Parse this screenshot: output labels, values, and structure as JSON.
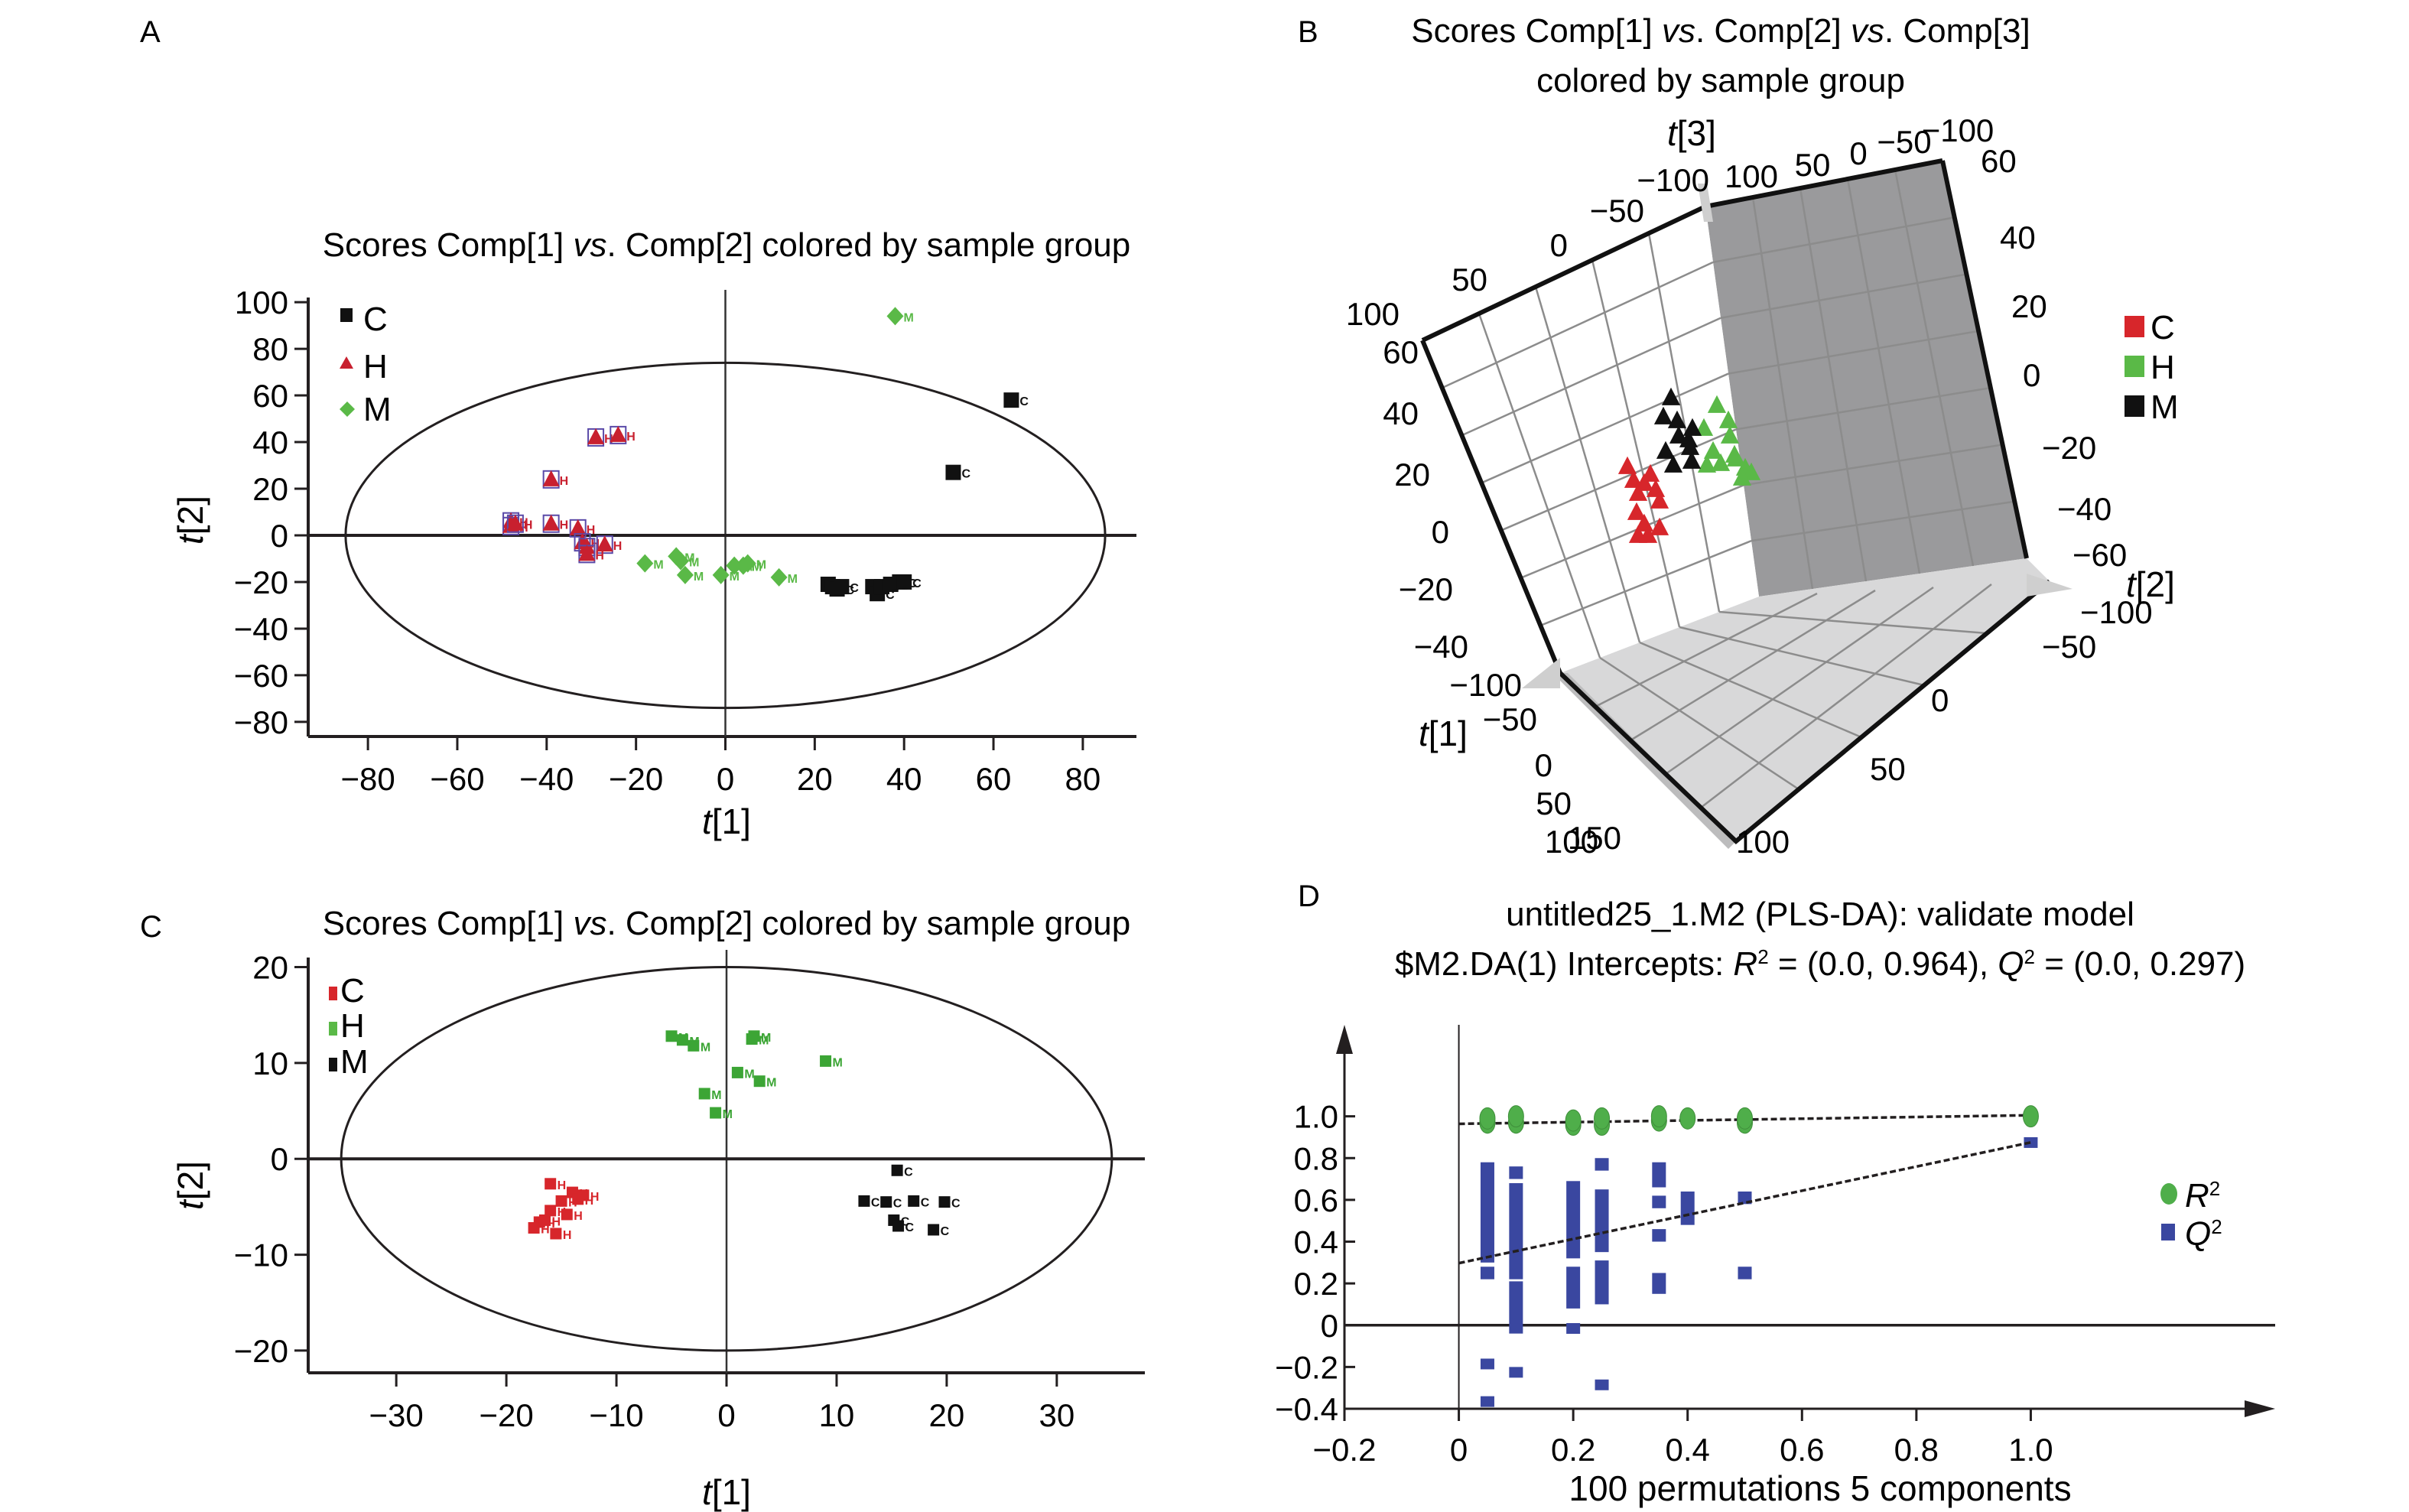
{
  "figure": {
    "panels": [
      "A",
      "B",
      "C",
      "D"
    ]
  },
  "chart_data": [
    {
      "id": "A",
      "type": "scatter",
      "panel_label": "A",
      "title": "Scores Comp[1] vs. Comp[2] colored by sample group",
      "title_parts": {
        "pre": "Scores Comp[1] ",
        "italic": "vs",
        "post": ". Comp[2] colored by sample group"
      },
      "xlabel": "t[1]",
      "xlabel_parts": {
        "italic": "t",
        "rest": "[1]"
      },
      "ylabel": "t[2]",
      "ylabel_parts": {
        "italic": "t",
        "rest": "[2]"
      },
      "xlim": [
        -92,
        92
      ],
      "ylim": [
        -82,
        102
      ],
      "xticks": [
        -80,
        -60,
        -40,
        -20,
        0,
        20,
        40,
        60,
        80
      ],
      "yticks": [
        100,
        80,
        60,
        40,
        20,
        0,
        -20,
        -40,
        -60,
        -80
      ],
      "grid": false,
      "ellipse": {
        "rx": 85,
        "ry": 74
      },
      "legend_position": "top-left",
      "legend": [
        {
          "name": "C",
          "marker": "square",
          "color": "#111111"
        },
        {
          "name": "H",
          "marker": "triangle",
          "color": "#c8202f"
        },
        {
          "name": "M",
          "marker": "diamond",
          "color": "#5ab947"
        }
      ],
      "series": [
        {
          "name": "C",
          "color": "#111111",
          "marker": "square",
          "points": [
            [
              64,
              58
            ],
            [
              51,
              27
            ],
            [
              23,
              -21
            ],
            [
              24,
              -22
            ],
            [
              25,
              -23
            ],
            [
              26,
              -22
            ],
            [
              33,
              -22
            ],
            [
              34,
              -25
            ],
            [
              35,
              -22
            ],
            [
              37,
              -21
            ],
            [
              39,
              -20
            ],
            [
              40,
              -20
            ]
          ]
        },
        {
          "name": "H",
          "color": "#c8202f",
          "marker": "triangle",
          "points": [
            [
              -29,
              42
            ],
            [
              -24,
              43
            ],
            [
              -39,
              24
            ],
            [
              -48,
              6
            ],
            [
              -48,
              4
            ],
            [
              -47,
              5
            ],
            [
              -39,
              5
            ],
            [
              -33,
              3
            ],
            [
              -32,
              -3
            ],
            [
              -31,
              -5
            ],
            [
              -27,
              -4
            ],
            [
              -31,
              -8
            ]
          ]
        },
        {
          "name": "M",
          "color": "#5ab947",
          "marker": "diamond",
          "points": [
            [
              38,
              94
            ],
            [
              -18,
              -12
            ],
            [
              -11,
              -9
            ],
            [
              -10,
              -11
            ],
            [
              -9,
              -17
            ],
            [
              -1,
              -17
            ],
            [
              2,
              -13
            ],
            [
              4,
              -13
            ],
            [
              5,
              -12
            ],
            [
              12,
              -18
            ]
          ]
        }
      ]
    },
    {
      "id": "B",
      "type": "scatter",
      "subtype": "3d",
      "panel_label": "B",
      "title_line1": "Scores Comp[1] vs. Comp[2] vs. Comp[3]",
      "title_line1_parts": {
        "a": "Scores Comp[1] ",
        "i1": "vs",
        "b": ". Comp[2] ",
        "i2": "vs",
        "c": ". Comp[3]"
      },
      "title_line2": "colored by sample group",
      "axes": {
        "t1": {
          "label": "t[1]",
          "ticks": [
            "-100",
            "-50",
            "0",
            "50",
            "100",
            "150"
          ]
        },
        "t2": {
          "label": "t[2]",
          "ticks": [
            "-100",
            "-50",
            "0",
            "50",
            "100"
          ]
        },
        "t3": {
          "label": "t[3]",
          "ticks_left": [
            "60",
            "40",
            "20",
            "0",
            "-20",
            "-40"
          ],
          "ticks_right": [
            "60",
            "40",
            "20",
            "0",
            "-20",
            "-40",
            "-60"
          ]
        },
        "top_ticks_left": [
          "100",
          "50",
          "0",
          "-50",
          "-100"
        ],
        "top_ticks_right": [
          "100",
          "50",
          "0",
          "-50",
          "-100"
        ]
      },
      "legend_position": "right",
      "legend": [
        {
          "name": "C",
          "color": "#d7262b"
        },
        {
          "name": "H",
          "color": "#5ab947"
        },
        {
          "name": "M",
          "color": "#111111"
        }
      ],
      "series": [
        {
          "name": "C",
          "color": "#d7262b",
          "marker": "triangle",
          "count": 12
        },
        {
          "name": "H",
          "color": "#5ab947",
          "marker": "triangle",
          "count": 12
        },
        {
          "name": "M",
          "color": "#111111",
          "marker": "triangle",
          "count": 10
        }
      ]
    },
    {
      "id": "C",
      "type": "scatter",
      "panel_label": "C",
      "title": "Scores Comp[1] vs. Comp[2] colored by sample group",
      "title_parts": {
        "pre": "Scores Comp[1] ",
        "italic": "vs",
        "post": ". Comp[2] colored by sample group"
      },
      "xlabel": "t[1]",
      "xlabel_parts": {
        "italic": "t",
        "rest": "[1]"
      },
      "ylabel": "t[2]",
      "ylabel_parts": {
        "italic": "t",
        "rest": "[2]"
      },
      "xlim": [
        -38,
        38
      ],
      "ylim": [
        -22,
        21
      ],
      "xticks": [
        -30,
        -20,
        -10,
        0,
        10,
        20,
        30
      ],
      "yticks": [
        20,
        10,
        0,
        -10,
        -20
      ],
      "grid": false,
      "ellipse": {
        "rx": 35,
        "ry": 20
      },
      "legend_position": "top-left",
      "legend": [
        {
          "name": "C",
          "marker": "square",
          "color": "#d7262b"
        },
        {
          "name": "H",
          "marker": "square",
          "color": "#5ab947"
        },
        {
          "name": "M",
          "marker": "square",
          "color": "#111111"
        }
      ],
      "series": [
        {
          "name": "H",
          "color": "#d7262b",
          "marker": "square",
          "points": [
            [
              -16,
              -2.6
            ],
            [
              -14,
              -3.5
            ],
            [
              -13.5,
              -4.2
            ],
            [
              -15,
              -4.4
            ],
            [
              -16,
              -5.4
            ],
            [
              -14.5,
              -5.8
            ],
            [
              -17,
              -6.6
            ],
            [
              -17.5,
              -7.2
            ],
            [
              -16.5,
              -6.4
            ],
            [
              -15.5,
              -7.8
            ],
            [
              -13,
              -3.8
            ]
          ]
        },
        {
          "name": "M",
          "color": "#3ca535",
          "marker": "square",
          "points": [
            [
              -5,
              12.8
            ],
            [
              -4,
              12.4
            ],
            [
              -3,
              11.8
            ],
            [
              2.5,
              12.8
            ],
            [
              2.3,
              12.5
            ],
            [
              9,
              10.2
            ],
            [
              1,
              9
            ],
            [
              3,
              8.1
            ],
            [
              -2,
              6.8
            ],
            [
              -1,
              4.8
            ]
          ]
        },
        {
          "name": "C",
          "color": "#111111",
          "marker": "square",
          "points": [
            [
              15.5,
              -1.2
            ],
            [
              12.5,
              -4.4
            ],
            [
              14.5,
              -4.5
            ],
            [
              17,
              -4.4
            ],
            [
              19.8,
              -4.5
            ],
            [
              15.2,
              -6.4
            ],
            [
              15.6,
              -7.0
            ],
            [
              18.8,
              -7.4
            ]
          ]
        }
      ]
    },
    {
      "id": "D",
      "type": "scatter",
      "panel_label": "D",
      "title_line1": "untitled25_1.M2 (PLS-DA): validate model",
      "title_line2": "$M2.DA(1) Intercepts: R2 = (0.0, 0.964), Q2 = (0.0, 0.297)",
      "title_line2_parts": {
        "a": "$M2.DA(1) Intercepts: ",
        "r": "R",
        "b": " = (0.0, 0.964), ",
        "q": "Q",
        "c": " = (0.0, 0.297)",
        "sup": "2"
      },
      "xlabel": "100 permutations 5 components",
      "xlim": [
        -0.2,
        1.2
      ],
      "ylim": [
        -0.4,
        1.2
      ],
      "xticks": [
        "-0.2",
        "0",
        "0.2",
        "0.4",
        "0.6",
        "0.8",
        "1.0"
      ],
      "xtick_values": [
        -0.2,
        0,
        0.2,
        0.4,
        0.6,
        0.8,
        1.0
      ],
      "yticks": [
        "1.0",
        "0.8",
        "0.6",
        "0.4",
        "0.2",
        "0",
        "-0.2",
        "-0.4"
      ],
      "ytick_values": [
        1.0,
        0.8,
        0.6,
        0.4,
        0.2,
        0,
        -0.2,
        -0.4
      ],
      "legend_position": "right",
      "legend": [
        {
          "name": "R2",
          "base": "R",
          "sup": "2",
          "marker": "circle",
          "color": "#4fae4a"
        },
        {
          "name": "Q2",
          "base": "Q",
          "sup": "2",
          "marker": "square",
          "color": "#3a47a0"
        }
      ],
      "series": [
        {
          "name": "R2",
          "color": "#4fae4a",
          "marker": "circle",
          "points": [
            [
              0.05,
              0.97
            ],
            [
              0.05,
              0.99
            ],
            [
              0.1,
              0.97
            ],
            [
              0.1,
              1.0
            ],
            [
              0.2,
              0.96
            ],
            [
              0.2,
              0.98
            ],
            [
              0.25,
              0.96
            ],
            [
              0.25,
              0.99
            ],
            [
              0.35,
              0.98
            ],
            [
              0.35,
              1.0
            ],
            [
              0.4,
              0.99
            ],
            [
              0.5,
              0.97
            ],
            [
              0.5,
              0.99
            ],
            [
              1.0,
              1.0
            ]
          ]
        },
        {
          "name": "Q2",
          "color": "#3a47a0",
          "marker": "square",
          "bars": [
            {
              "x": 0.05,
              "from": 0.3,
              "to": 0.78
            },
            {
              "x": 0.05,
              "from": 0.22,
              "to": 0.28
            },
            {
              "x": 0.05,
              "from": -0.2,
              "to": -0.16
            },
            {
              "x": 0.05,
              "from": -0.38,
              "to": -0.34
            },
            {
              "x": 0.1,
              "from": 0.7,
              "to": 0.76
            },
            {
              "x": 0.1,
              "from": 0.22,
              "to": 0.68
            },
            {
              "x": 0.1,
              "from": -0.04,
              "to": 0.21
            },
            {
              "x": 0.1,
              "from": -0.24,
              "to": -0.2
            },
            {
              "x": 0.2,
              "from": 0.32,
              "to": 0.69
            },
            {
              "x": 0.2,
              "from": 0.08,
              "to": 0.28
            },
            {
              "x": 0.2,
              "from": -0.04,
              "to": 0.01
            },
            {
              "x": 0.25,
              "from": 0.74,
              "to": 0.8
            },
            {
              "x": 0.25,
              "from": 0.35,
              "to": 0.65
            },
            {
              "x": 0.25,
              "from": 0.1,
              "to": 0.31
            },
            {
              "x": 0.25,
              "from": -0.3,
              "to": -0.26
            },
            {
              "x": 0.35,
              "from": 0.66,
              "to": 0.78
            },
            {
              "x": 0.35,
              "from": 0.56,
              "to": 0.62
            },
            {
              "x": 0.35,
              "from": 0.4,
              "to": 0.46
            },
            {
              "x": 0.35,
              "from": 0.15,
              "to": 0.25
            },
            {
              "x": 0.4,
              "from": 0.48,
              "to": 0.64
            },
            {
              "x": 0.5,
              "from": 0.58,
              "to": 0.64
            },
            {
              "x": 0.5,
              "from": 0.22,
              "to": 0.28
            },
            {
              "x": 1.0,
              "from": 0.85,
              "to": 0.9
            }
          ]
        },
        {
          "name": "R2 regression",
          "type": "dashed-line",
          "points": [
            [
              0,
              0.964
            ],
            [
              1.0,
              1.005
            ]
          ]
        },
        {
          "name": "Q2 regression",
          "type": "dashed-line",
          "points": [
            [
              0,
              0.297
            ],
            [
              1.0,
              0.875
            ]
          ]
        }
      ]
    }
  ]
}
